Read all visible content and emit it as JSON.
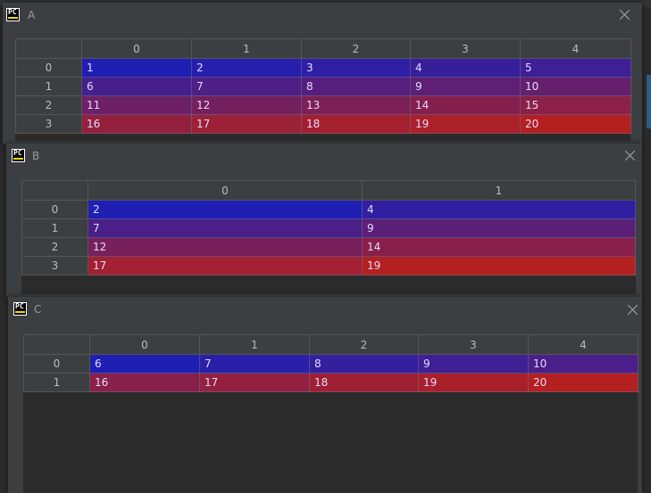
{
  "windows": [
    {
      "title": "A",
      "columns": [
        "0",
        "1",
        "2",
        "3",
        "4"
      ],
      "rows": [
        {
          "index": "0",
          "cells": [
            "1",
            "2",
            "3",
            "4",
            "5"
          ]
        },
        {
          "index": "1",
          "cells": [
            "6",
            "7",
            "8",
            "9",
            "10"
          ]
        },
        {
          "index": "2",
          "cells": [
            "11",
            "12",
            "13",
            "14",
            "15"
          ]
        },
        {
          "index": "3",
          "cells": [
            "16",
            "17",
            "18",
            "19",
            "20"
          ]
        }
      ]
    },
    {
      "title": "B",
      "columns": [
        "0",
        "1"
      ],
      "rows": [
        {
          "index": "0",
          "cells": [
            "2",
            "4"
          ]
        },
        {
          "index": "1",
          "cells": [
            "7",
            "9"
          ]
        },
        {
          "index": "2",
          "cells": [
            "12",
            "14"
          ]
        },
        {
          "index": "3",
          "cells": [
            "17",
            "19"
          ]
        }
      ]
    },
    {
      "title": "C",
      "columns": [
        "0",
        "1",
        "2",
        "3",
        "4"
      ],
      "rows": [
        {
          "index": "0",
          "cells": [
            "6",
            "7",
            "8",
            "9",
            "10"
          ]
        },
        {
          "index": "1",
          "cells": [
            "16",
            "17",
            "18",
            "19",
            "20"
          ]
        }
      ]
    }
  ],
  "icon": "pycharm-icon",
  "icon_text": "PC",
  "colors": {
    "min_value": "#1f1fb4",
    "max_value": "#b4201f",
    "header_bg": "#3c3f41",
    "window_bg": "#3c3f41"
  }
}
